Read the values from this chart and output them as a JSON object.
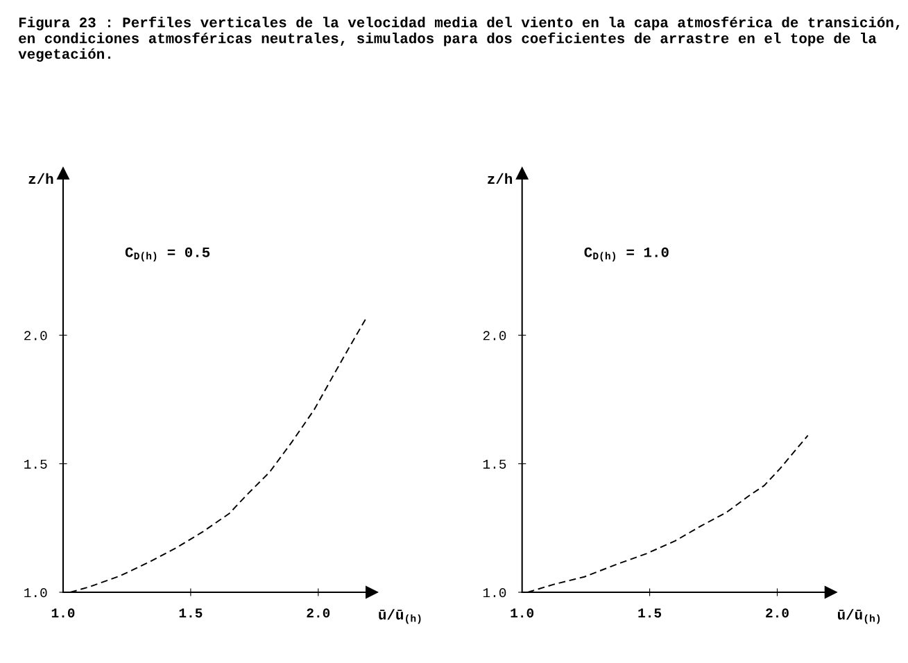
{
  "chart_data": [
    {
      "type": "line",
      "title": "Figura 23 : Perfiles verticales de la velocidad media del viento en la capa atmosférica de transición, en condiciones atmosféricas neutrales, simulados para dos coeficientes de arrastre en el tope de la vegetación.",
      "xlabel": "ū/ū$_{(h)}$",
      "ylabel": "z/h",
      "annotations": [
        "C$_{D(h)}$ = 0.5"
      ],
      "xlim": [
        1.0,
        2.21
      ],
      "ylim": [
        1.0,
        2.63
      ],
      "xticks": [
        {
          "value": 1.0,
          "label": "1.0"
        },
        {
          "value": 1.5,
          "label": "1.5"
        },
        {
          "value": 2.0,
          "label": "2.0"
        }
      ],
      "yticks": [
        {
          "value": 1.0,
          "label": "1.0"
        },
        {
          "value": 1.5,
          "label": "1.5"
        },
        {
          "value": 2.0,
          "label": "2.0"
        }
      ],
      "grid": false,
      "legend": false,
      "line_style": "dashed",
      "marker": "none",
      "series": [
        {
          "color": "#000000",
          "x": [
            1.028,
            1.1,
            1.224,
            1.338,
            1.442,
            1.547,
            1.652,
            1.72,
            1.81,
            1.897,
            1.984,
            2.06,
            2.12,
            2.19
          ],
          "values": [
            1.0,
            1.02,
            1.064,
            1.118,
            1.172,
            1.235,
            1.307,
            1.379,
            1.468,
            1.585,
            1.71,
            1.845,
            1.95,
            2.07
          ]
        }
      ]
    },
    {
      "type": "line",
      "xlabel": "ū/ū$_{(h)}$",
      "ylabel": "z/h",
      "annotations": [
        "C$_{D(h)}$ = 1.0"
      ],
      "xlim": [
        1.0,
        2.21
      ],
      "ylim": [
        1.0,
        2.63
      ],
      "xticks": [
        {
          "value": 1.0,
          "label": "1.0"
        },
        {
          "value": 1.5,
          "label": "1.5"
        },
        {
          "value": 2.0,
          "label": "2.0"
        }
      ],
      "yticks": [
        {
          "value": 1.0,
          "label": "1.0"
        },
        {
          "value": 1.5,
          "label": "1.5"
        },
        {
          "value": 2.0,
          "label": "2.0"
        }
      ],
      "grid": false,
      "legend": false,
      "line_style": "dashed",
      "marker": "none",
      "series": [
        {
          "color": "#000000",
          "x": [
            1.022,
            1.122,
            1.244,
            1.374,
            1.487,
            1.6,
            1.705,
            1.8,
            1.896,
            1.949,
            2.01,
            2.12
          ],
          "values": [
            1.0,
            1.03,
            1.06,
            1.11,
            1.15,
            1.2,
            1.26,
            1.31,
            1.38,
            1.415,
            1.48,
            1.61
          ]
        }
      ]
    }
  ]
}
